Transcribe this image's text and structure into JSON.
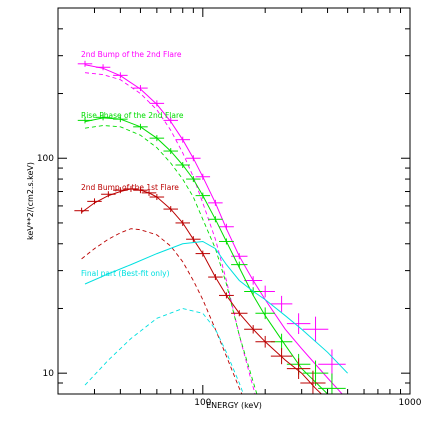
{
  "chart_data": {
    "type": "line",
    "title": "",
    "xlabel": "ENERGY (keV)",
    "ylabel": "keV**2/(cm2.s.keV)",
    "xscale": "log",
    "yscale": "log",
    "xlim": [
      20,
      1000
    ],
    "ylim": [
      8,
      500
    ],
    "grid": false,
    "legend": "inline-labels",
    "x_ticks": [
      {
        "value": 100,
        "label": "100"
      },
      {
        "value": 1000,
        "label": "1000"
      }
    ],
    "y_ticks": [
      {
        "value": 10,
        "label": "10"
      },
      {
        "value": 100,
        "label": "100"
      }
    ],
    "series": [
      {
        "name": "2nd Bump of the 2nd Flare",
        "color": "#ff00ff",
        "markers": "cross",
        "x": [
          27,
          33,
          40,
          50,
          60,
          70,
          80,
          90,
          100,
          115,
          130,
          150,
          175,
          200,
          240,
          290,
          350,
          420
        ],
        "y": [
          275,
          265,
          243,
          212,
          180,
          150,
          122,
          100,
          82,
          62,
          48,
          35,
          27,
          24,
          21,
          17,
          16,
          11
        ],
        "model": {
          "x": [
            27,
            33,
            40,
            50,
            60,
            70,
            80,
            90,
            100,
            115,
            130,
            150,
            175,
            200,
            250,
            300,
            400,
            500
          ],
          "y": [
            272,
            262,
            242,
            210,
            178,
            148,
            122,
            100,
            82,
            62,
            47,
            35,
            27,
            22,
            16,
            13,
            9.5,
            7.5
          ]
        },
        "component": {
          "x": [
            27,
            33,
            40,
            50,
            60,
            70,
            80,
            90,
            100,
            115,
            130,
            150,
            170,
            190
          ],
          "y": [
            250,
            245,
            232,
            200,
            168,
            135,
            106,
            82,
            62,
            42,
            27,
            15,
            9.5,
            6.5
          ]
        }
      },
      {
        "name": "Rise Phase of the 2nd Flare",
        "color": "#00dd00",
        "markers": "cross",
        "x": [
          27,
          33,
          40,
          50,
          60,
          70,
          80,
          90,
          100,
          115,
          130,
          150,
          175,
          200,
          240,
          290,
          350,
          420
        ],
        "y": [
          150,
          155,
          152,
          140,
          124,
          108,
          93,
          80,
          67,
          52,
          41,
          32,
          24,
          19,
          14,
          11,
          10,
          8.5
        ],
        "model": {
          "x": [
            27,
            33,
            40,
            50,
            60,
            70,
            80,
            90,
            100,
            115,
            130,
            150,
            175,
            200,
            250,
            300,
            400,
            450
          ],
          "y": [
            148,
            154,
            152,
            140,
            124,
            108,
            93,
            80,
            67,
            52,
            41,
            31,
            23,
            18.5,
            13.5,
            10.5,
            8,
            7.2
          ]
        },
        "component": {
          "x": [
            27,
            33,
            40,
            50,
            60,
            70,
            80,
            90,
            100,
            115,
            130,
            150,
            170,
            190
          ],
          "y": [
            138,
            142,
            140,
            128,
            112,
            95,
            80,
            66,
            52,
            38,
            26,
            15,
            10,
            7
          ]
        }
      },
      {
        "name": "2nd Bump of the 1st Flare",
        "color": "#bb0000",
        "markers": "cross",
        "x": [
          26,
          30,
          35,
          40,
          45,
          50,
          55,
          60,
          70,
          80,
          90,
          100,
          115,
          130,
          150,
          175,
          200,
          240,
          290,
          340
        ],
        "y": [
          57,
          63,
          68,
          71,
          72,
          71,
          69,
          66,
          58,
          50,
          42,
          36,
          28,
          23,
          19,
          16,
          14,
          12,
          10.5,
          9
        ],
        "model": {
          "x": [
            26,
            30,
            35,
            40,
            45,
            50,
            55,
            60,
            70,
            80,
            90,
            100,
            115,
            130,
            150,
            175,
            200,
            250,
            300,
            350,
            400
          ],
          "y": [
            56,
            62,
            67,
            70,
            72,
            71,
            69,
            66,
            58,
            50,
            42,
            36,
            28,
            23,
            19,
            16,
            14,
            11.5,
            10,
            8.5,
            7.5
          ]
        },
        "component": {
          "x": [
            26,
            30,
            35,
            40,
            45,
            50,
            60,
            70,
            80,
            90,
            100,
            115,
            130,
            150,
            170,
            190
          ],
          "y": [
            34,
            38,
            42,
            45,
            47,
            46.5,
            44,
            39,
            33,
            27,
            22,
            16,
            12,
            8.5,
            6.5,
            5
          ]
        }
      },
      {
        "name": "Final part (Best-fit only)",
        "color": "#00e0e0",
        "markers": "none",
        "model": {
          "x": [
            27,
            35,
            45,
            60,
            80,
            100,
            115,
            130,
            150,
            175,
            200,
            250,
            300,
            400,
            500
          ],
          "y": [
            26,
            29,
            32,
            36,
            40,
            41,
            38,
            32,
            27,
            24,
            22,
            18.5,
            16,
            12.5,
            10
          ]
        },
        "component": {
          "x": [
            27,
            35,
            45,
            60,
            80,
            100,
            115,
            130,
            150,
            170,
            190
          ],
          "y": [
            8.8,
            11.5,
            14.5,
            18,
            20,
            19,
            16,
            12.5,
            9,
            6.5,
            5
          ]
        }
      }
    ]
  }
}
